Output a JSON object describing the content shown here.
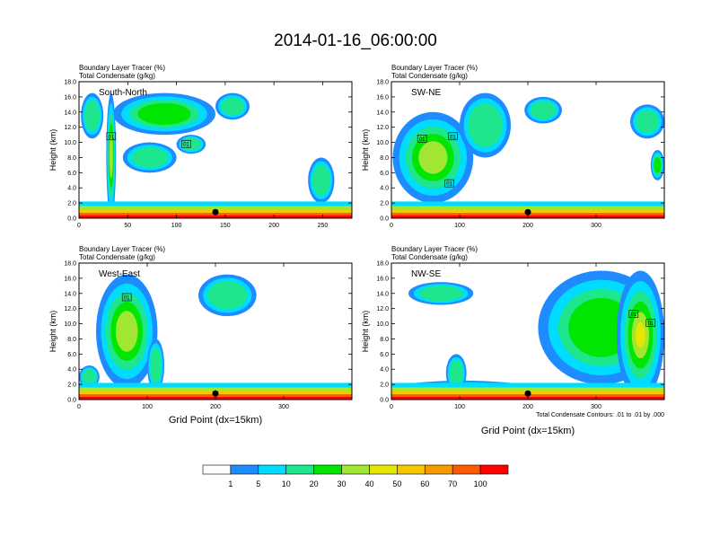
{
  "title": "2014-01-16_06:00:00",
  "panel_label_line1": "Boundary Layer Tracer    (%)",
  "panel_label_line2": "Total Condensate    (g/kg)",
  "ylabel": "Height (km)",
  "xlabel": "Grid Point (dx=15km)",
  "contour_note": "Total Condensate Contours: .01 to .01 by .000",
  "colorbar": {
    "colors": [
      "#ffffff",
      "#1e8cff",
      "#00dcff",
      "#1ee68c",
      "#00e600",
      "#a0e632",
      "#e6e600",
      "#f5c800",
      "#f59b00",
      "#ff5a00",
      "#ff0000"
    ],
    "labels": [
      "1",
      "5",
      "10",
      "20",
      "30",
      "40",
      "50",
      "60",
      "70",
      "100"
    ]
  },
  "chart_data": [
    {
      "type": "heatmap",
      "panel": "South-North",
      "xlim": [
        0,
        280
      ],
      "ylim": [
        0,
        18
      ],
      "xticks": [
        "0",
        "50",
        "100",
        "150",
        "200",
        "250"
      ],
      "xtick_values": [
        0,
        50,
        100,
        150,
        200,
        250
      ],
      "yticks": [
        "0.0",
        "2.0",
        "4.0",
        "6.0",
        "8.0",
        "10.0",
        "12.0",
        "14.0",
        "16.0",
        "18.0"
      ],
      "ytick_values": [
        0,
        2,
        4,
        6,
        8,
        10,
        12,
        14,
        16,
        18
      ],
      "marker_x": 140,
      "contour_labels": [
        {
          "x": 33,
          "y": 10.8,
          "text": "01"
        },
        {
          "x": 110,
          "y": 9.8,
          "text": "01"
        }
      ],
      "cloud_blobs": [
        {
          "x": [
            2,
            25
          ],
          "y": [
            10.5,
            16.5
          ],
          "level": 3
        },
        {
          "x": [
            35,
            140
          ],
          "y": [
            11,
            16.5
          ],
          "level": 4
        },
        {
          "x": [
            45,
            100
          ],
          "y": [
            6,
            10
          ],
          "level": 3
        },
        {
          "x": [
            100,
            130
          ],
          "y": [
            8.5,
            11
          ],
          "level": 3
        },
        {
          "x": [
            140,
            175
          ],
          "y": [
            13,
            16.5
          ],
          "level": 3
        },
        {
          "x": [
            235,
            262
          ],
          "y": [
            2,
            8
          ],
          "level": 3
        },
        {
          "x": [
            28,
            38
          ],
          "y": [
            0,
            16.5
          ],
          "level": 5
        }
      ]
    },
    {
      "type": "heatmap",
      "panel": "SW-NE",
      "xlim": [
        0,
        400
      ],
      "ylim": [
        0,
        18
      ],
      "xticks": [
        "0",
        "100",
        "200",
        "300"
      ],
      "xtick_values": [
        0,
        100,
        200,
        300
      ],
      "yticks": [
        "0.0",
        "2.0",
        "4.0",
        "6.0",
        "8.0",
        "10.0",
        "12.0",
        "14.0",
        "16.0",
        "18.0"
      ],
      "ytick_values": [
        0,
        2,
        4,
        6,
        8,
        10,
        12,
        14,
        16,
        18
      ],
      "marker_x": 200,
      "contour_labels": [
        {
          "x": 45,
          "y": 10.5,
          "text": "01"
        },
        {
          "x": 90,
          "y": 10.8,
          "text": "01"
        },
        {
          "x": 85,
          "y": 4.6,
          "text": "01"
        }
      ],
      "cloud_blobs": [
        {
          "x": [
            2,
            120
          ],
          "y": [
            2,
            14
          ],
          "level": 5
        },
        {
          "x": [
            100,
            175
          ],
          "y": [
            8,
            16.5
          ],
          "level": 3
        },
        {
          "x": [
            195,
            250
          ],
          "y": [
            12.5,
            16
          ],
          "level": 3
        },
        {
          "x": [
            350,
            400
          ],
          "y": [
            10.5,
            15
          ],
          "level": 3
        },
        {
          "x": [
            380,
            400
          ],
          "y": [
            5,
            9
          ],
          "level": 4
        }
      ]
    },
    {
      "type": "heatmap",
      "panel": "West-East",
      "xlim": [
        0,
        400
      ],
      "ylim": [
        0,
        18
      ],
      "xticks": [
        "0",
        "100",
        "200",
        "300"
      ],
      "xtick_values": [
        0,
        100,
        200,
        300
      ],
      "yticks": [
        "0.0",
        "2.0",
        "4.0",
        "6.0",
        "8.0",
        "10.0",
        "12.0",
        "14.0",
        "16.0",
        "18.0"
      ],
      "ytick_values": [
        0,
        2,
        4,
        6,
        8,
        10,
        12,
        14,
        16,
        18
      ],
      "marker_x": 200,
      "contour_labels": [
        {
          "x": 70,
          "y": 13.5,
          "text": "01"
        }
      ],
      "cloud_blobs": [
        {
          "x": [
            25,
            115
          ],
          "y": [
            1.5,
            16.5
          ],
          "level": 5
        },
        {
          "x": [
            100,
            125
          ],
          "y": [
            1,
            8
          ],
          "level": 3
        },
        {
          "x": [
            175,
            260
          ],
          "y": [
            11,
            16.5
          ],
          "level": 3
        },
        {
          "x": [
            0,
            30
          ],
          "y": [
            1.5,
            4.5
          ],
          "level": 3
        }
      ]
    },
    {
      "type": "heatmap",
      "panel": "NW-SE",
      "xlim": [
        0,
        400
      ],
      "ylim": [
        0,
        18
      ],
      "xticks": [
        "0",
        "100",
        "200",
        "300"
      ],
      "xtick_values": [
        0,
        100,
        200,
        300
      ],
      "yticks": [
        "0.0",
        "2.0",
        "4.0",
        "6.0",
        "8.0",
        "10.0",
        "12.0",
        "14.0",
        "16.0",
        "18.0"
      ],
      "ytick_values": [
        0,
        2,
        4,
        6,
        8,
        10,
        12,
        14,
        16,
        18
      ],
      "marker_x": 200,
      "contour_labels": [
        {
          "x": 355,
          "y": 11.3,
          "text": "01"
        },
        {
          "x": 380,
          "y": 10.1,
          "text": "01"
        }
      ],
      "cloud_blobs": [
        {
          "x": [
            25,
            120
          ],
          "y": [
            12.5,
            15.5
          ],
          "level": 3
        },
        {
          "x": [
            215,
            400
          ],
          "y": [
            2,
            17
          ],
          "level": 4
        },
        {
          "x": [
            0,
            210
          ],
          "y": [
            0,
            2.5
          ],
          "level": 2
        },
        {
          "x": [
            80,
            110
          ],
          "y": [
            1,
            6
          ],
          "level": 3
        },
        {
          "x": [
            330,
            400
          ],
          "y": [
            0,
            17
          ],
          "level": 6
        }
      ]
    }
  ]
}
